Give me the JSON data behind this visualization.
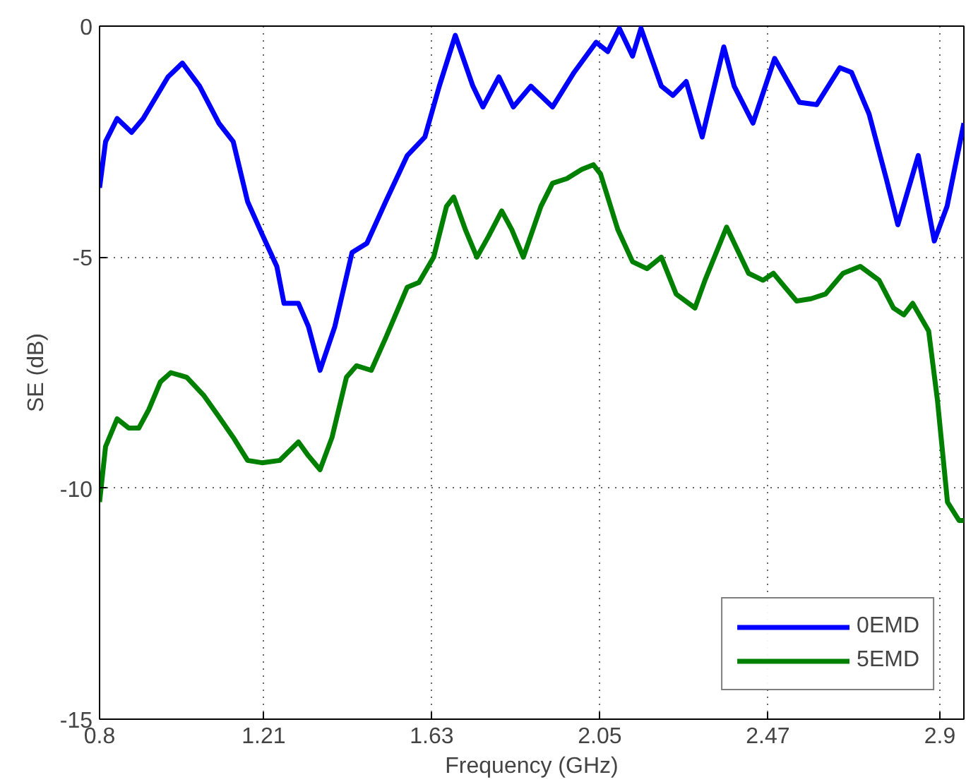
{
  "chart_data": {
    "type": "line",
    "xlabel": "Frequency (GHz)",
    "ylabel": "SE (dB)",
    "xlim": [
      0.8,
      2.96
    ],
    "ylim": [
      -15,
      0
    ],
    "xticks": [
      0.8,
      1.21,
      1.63,
      2.05,
      2.47,
      2.9
    ],
    "yticks": [
      -15,
      -10,
      -5,
      0
    ],
    "grid": true,
    "legend": "bottom right",
    "line_style": "solid",
    "marker": "none",
    "series": [
      {
        "name": "0EMD",
        "color": "#0000ff",
        "x": [
          0.8,
          0.815,
          0.844,
          0.88,
          0.909,
          0.971,
          1.007,
          1.05,
          1.098,
          1.134,
          1.17,
          1.206,
          1.243,
          1.261,
          1.297,
          1.322,
          1.351,
          1.388,
          1.431,
          1.468,
          1.515,
          1.569,
          1.613,
          1.649,
          1.689,
          1.733,
          1.758,
          1.798,
          1.834,
          1.878,
          1.932,
          1.986,
          2.041,
          2.07,
          2.099,
          2.132,
          2.153,
          2.204,
          2.233,
          2.266,
          2.306,
          2.36,
          2.386,
          2.433,
          2.487,
          2.549,
          2.592,
          2.65,
          2.679,
          2.723,
          2.766,
          2.795,
          2.846,
          2.886,
          2.918,
          2.96
        ],
        "values": [
          -3.5,
          -2.5,
          -2.0,
          -2.3,
          -2.0,
          -1.1,
          -0.8,
          -1.3,
          -2.1,
          -2.5,
          -3.8,
          -4.5,
          -5.2,
          -6.0,
          -6.0,
          -6.5,
          -7.45,
          -6.5,
          -4.9,
          -4.7,
          -3.8,
          -2.8,
          -2.4,
          -1.3,
          -0.2,
          -1.3,
          -1.75,
          -1.1,
          -1.75,
          -1.3,
          -1.75,
          -1.0,
          -0.35,
          -0.55,
          -0.05,
          -0.65,
          -0.05,
          -1.3,
          -1.5,
          -1.2,
          -2.4,
          -0.45,
          -1.3,
          -2.1,
          -0.7,
          -1.65,
          -1.7,
          -0.9,
          -1.0,
          -1.9,
          -3.3,
          -4.3,
          -2.8,
          -4.65,
          -3.9,
          -2.1
        ]
      },
      {
        "name": "5EMD",
        "color": "#008000",
        "x": [
          0.8,
          0.815,
          0.844,
          0.873,
          0.898,
          0.923,
          0.952,
          0.978,
          1.018,
          1.061,
          1.098,
          1.134,
          1.17,
          1.206,
          1.25,
          1.297,
          1.322,
          1.351,
          1.381,
          1.417,
          1.442,
          1.479,
          1.515,
          1.569,
          1.598,
          1.635,
          1.667,
          1.685,
          1.714,
          1.743,
          1.772,
          1.805,
          1.83,
          1.859,
          1.903,
          1.932,
          1.968,
          2.005,
          2.034,
          2.052,
          2.095,
          2.132,
          2.168,
          2.204,
          2.241,
          2.288,
          2.313,
          2.367,
          2.422,
          2.458,
          2.484,
          2.513,
          2.542,
          2.578,
          2.614,
          2.658,
          2.701,
          2.748,
          2.784,
          2.81,
          2.832,
          2.872,
          2.894,
          2.919,
          2.948,
          2.96
        ],
        "values": [
          -10.3,
          -9.1,
          -8.5,
          -8.7,
          -8.7,
          -8.3,
          -7.7,
          -7.5,
          -7.6,
          -8.0,
          -8.45,
          -8.9,
          -9.4,
          -9.45,
          -9.4,
          -9.0,
          -9.3,
          -9.6,
          -8.9,
          -7.6,
          -7.35,
          -7.45,
          -6.75,
          -5.65,
          -5.55,
          -5.0,
          -3.9,
          -3.7,
          -4.4,
          -5.0,
          -4.55,
          -4.0,
          -4.4,
          -5.0,
          -3.9,
          -3.4,
          -3.3,
          -3.1,
          -3.0,
          -3.2,
          -4.4,
          -5.1,
          -5.25,
          -5.0,
          -5.8,
          -6.1,
          -5.5,
          -4.35,
          -5.35,
          -5.5,
          -5.35,
          -5.65,
          -5.95,
          -5.9,
          -5.8,
          -5.35,
          -5.2,
          -5.5,
          -6.1,
          -6.25,
          -6.0,
          -6.6,
          -8.1,
          -10.3,
          -10.7,
          -10.7
        ]
      }
    ]
  }
}
